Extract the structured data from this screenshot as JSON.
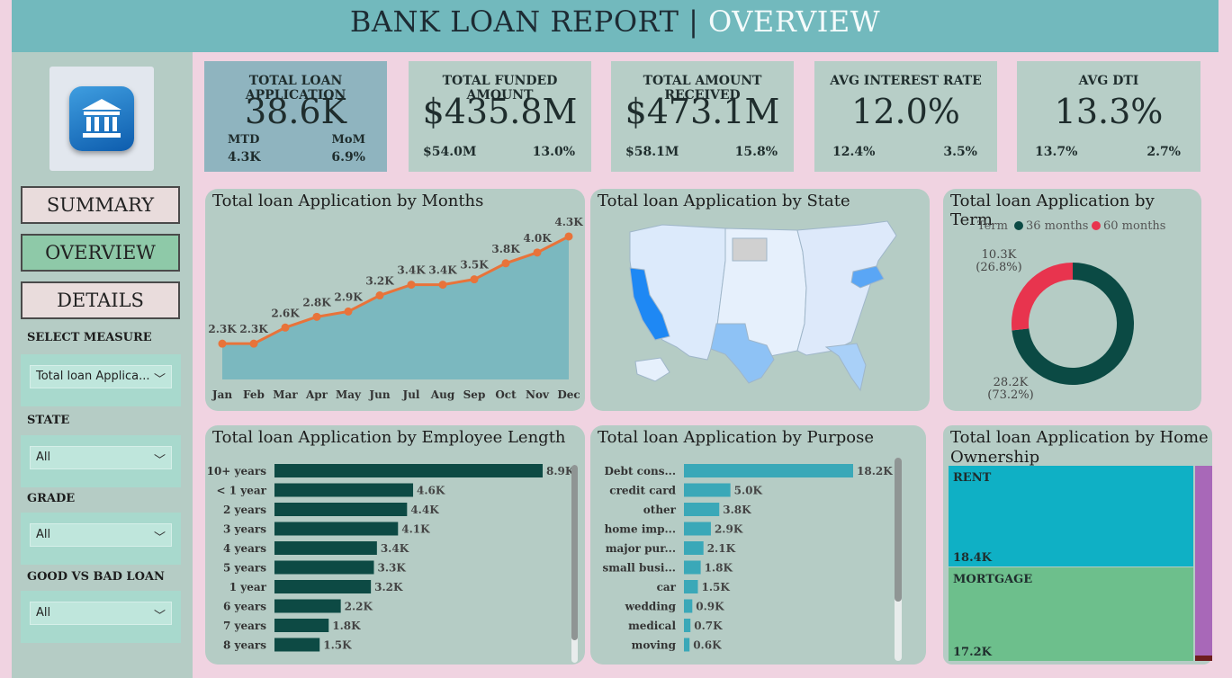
{
  "header": {
    "title_part1": "BANK LOAN REPORT | ",
    "title_part2": "OVERVIEW"
  },
  "nav": {
    "summary": "SUMMARY",
    "overview": "OVERVIEW",
    "details": "DETAILS"
  },
  "filters": {
    "measure_label": "SELECT MEASURE",
    "measure_value": "Total loan Applica...",
    "state_label": "STATE",
    "state_value": "All",
    "grade_label": "GRADE",
    "grade_value": "All",
    "good_bad_label": "GOOD VS BAD LOAN",
    "good_bad_value": "All"
  },
  "kpis": {
    "apps": {
      "title": "TOTAL LOAN APPLICATION",
      "value": "38.6K",
      "mtd_label": "MTD",
      "mom_label": "MoM",
      "mtd": "4.3K",
      "mom": "6.9%"
    },
    "funded": {
      "title": "TOTAL FUNDED AMOUNT",
      "value": "$435.8M",
      "mtd": "$54.0M",
      "mom": "13.0%"
    },
    "received": {
      "title": "TOTAL AMOUNT RECEIVED",
      "value": "$473.1M",
      "mtd": "$58.1M",
      "mom": "15.8%"
    },
    "interest": {
      "title": "AVG INTEREST RATE",
      "value": "12.0%",
      "mtd": "12.4%",
      "mom": "3.5%"
    },
    "dti": {
      "title": "AVG  DTI",
      "value": "13.3%",
      "mtd": "13.7%",
      "mom": "2.7%"
    }
  },
  "panels": {
    "months": "Total loan Application by Months",
    "state": "Total loan Application by State",
    "term": "Total loan Application by Term",
    "emp": "Total loan Application by Employee Length",
    "purpose": "Total loan Application by Purpose",
    "home": "Total loan Application by Home Ownership"
  },
  "colors": {
    "line": "#e8733a",
    "area": "#7bb8bf",
    "emp_bar": "#0d4a44",
    "purpose_bar": "#3aa8b8",
    "term36": "#0b4a44",
    "term60": "#e8344e",
    "rent": "#0fb0c5",
    "mortgage": "#6dbf8c",
    "own": "#a868b8"
  },
  "chart_data": [
    {
      "type": "area",
      "title": "Total loan Application by Months",
      "categories": [
        "Jan",
        "Feb",
        "Mar",
        "Apr",
        "May",
        "Jun",
        "Jul",
        "Aug",
        "Sep",
        "Oct",
        "Nov",
        "Dec"
      ],
      "values": [
        2.3,
        2.3,
        2.6,
        2.8,
        2.9,
        3.2,
        3.4,
        3.4,
        3.5,
        3.8,
        4.0,
        4.3
      ],
      "labels": [
        "2.3K",
        "2.3K",
        "2.6K",
        "2.8K",
        "2.9K",
        "3.2K",
        "3.4K",
        "3.4K",
        "3.5K",
        "3.8K",
        "4.0K",
        "4.3K"
      ]
    },
    {
      "type": "pie",
      "title": "Total loan Application by Term",
      "legend_title": "Term",
      "series": [
        {
          "name": "36 months",
          "value": 28.2,
          "label": "28.2K",
          "pct": "(73.2%)"
        },
        {
          "name": "60 months",
          "value": 10.3,
          "label": "10.3K",
          "pct": "(26.8%)"
        }
      ]
    },
    {
      "type": "bar",
      "title": "Total loan Application by Employee Length",
      "categories": [
        "10+ years",
        "< 1 year",
        "2 years",
        "3 years",
        "4 years",
        "5 years",
        "1 year",
        "6 years",
        "7 years",
        "8 years"
      ],
      "values": [
        8.9,
        4.6,
        4.4,
        4.1,
        3.4,
        3.3,
        3.2,
        2.2,
        1.8,
        1.5
      ],
      "labels": [
        "8.9K",
        "4.6K",
        "4.4K",
        "4.1K",
        "3.4K",
        "3.3K",
        "3.2K",
        "2.2K",
        "1.8K",
        "1.5K"
      ]
    },
    {
      "type": "bar",
      "title": "Total loan Application by Purpose",
      "categories": [
        "Debt cons...",
        "credit card",
        "other",
        "home imp...",
        "major pur...",
        "small busi...",
        "car",
        "wedding",
        "medical",
        "moving"
      ],
      "values": [
        18.2,
        5.0,
        3.8,
        2.9,
        2.1,
        1.8,
        1.5,
        0.9,
        0.7,
        0.6
      ],
      "labels": [
        "18.2K",
        "5.0K",
        "3.8K",
        "2.9K",
        "2.1K",
        "1.8K",
        "1.5K",
        "0.9K",
        "0.7K",
        "0.6K"
      ]
    },
    {
      "type": "heatmap",
      "title": "Total loan Application by Home Ownership",
      "series": [
        {
          "name": "RENT",
          "value": 18.4,
          "label": "18.4K"
        },
        {
          "name": "MORTGAGE",
          "value": 17.2,
          "label": "17.2K"
        }
      ]
    }
  ]
}
